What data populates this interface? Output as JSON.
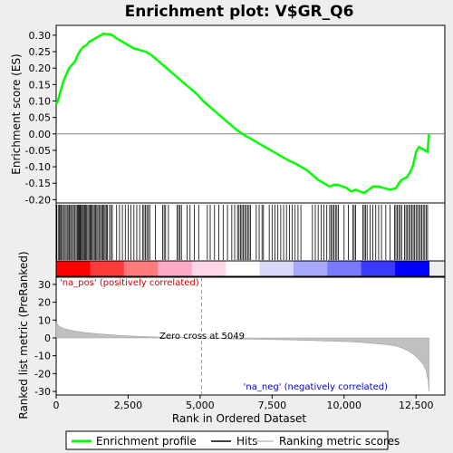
{
  "chart_data": {
    "type": "line",
    "title": "Enrichment plot: V$GR_Q6",
    "top_panel": {
      "ylabel": "Enrichment score (ES)",
      "ylim": [
        -0.21,
        0.33
      ],
      "yticks": [
        -0.2,
        -0.15,
        -0.1,
        -0.05,
        0.0,
        0.05,
        0.1,
        0.15,
        0.2,
        0.25,
        0.3
      ],
      "ytick_labels": [
        "-0.20",
        "-0.15",
        "-0.10",
        "-0.05",
        "0.00",
        "0.05",
        "0.10",
        "0.15",
        "0.20",
        "0.25",
        "0.30"
      ],
      "series_name": "Enrichment profile",
      "color": "#00ff00",
      "x": [
        0,
        60,
        150,
        250,
        350,
        450,
        550,
        650,
        750,
        850,
        950,
        1050,
        1150,
        1250,
        1350,
        1450,
        1550,
        1650,
        1750,
        1850,
        1950,
        2100,
        2300,
        2500,
        2700,
        2900,
        3100,
        3300,
        3500,
        3700,
        3900,
        4100,
        4300,
        4500,
        4700,
        4900,
        5100,
        5300,
        5500,
        5700,
        5900,
        6100,
        6300,
        6500,
        6700,
        6900,
        7100,
        7300,
        7500,
        7700,
        7900,
        8100,
        8300,
        8500,
        8700,
        8900,
        9100,
        9300,
        9500,
        9650,
        9800,
        9950,
        10100,
        10250,
        10400,
        10550,
        10700,
        10850,
        11000,
        11200,
        11400,
        11600,
        11800,
        11900,
        12000,
        12100,
        12200,
        12300,
        12400,
        12500,
        12600,
        12700,
        12800,
        12900,
        12950
      ],
      "y": [
        0.09,
        0.1,
        0.13,
        0.16,
        0.18,
        0.2,
        0.21,
        0.22,
        0.24,
        0.255,
        0.265,
        0.27,
        0.28,
        0.285,
        0.29,
        0.295,
        0.3,
        0.305,
        0.303,
        0.303,
        0.3,
        0.29,
        0.28,
        0.27,
        0.26,
        0.255,
        0.25,
        0.24,
        0.225,
        0.21,
        0.195,
        0.18,
        0.165,
        0.15,
        0.135,
        0.12,
        0.1,
        0.085,
        0.07,
        0.055,
        0.04,
        0.025,
        0.01,
        -0.002,
        -0.012,
        -0.022,
        -0.032,
        -0.042,
        -0.052,
        -0.062,
        -0.072,
        -0.082,
        -0.09,
        -0.1,
        -0.11,
        -0.125,
        -0.14,
        -0.15,
        -0.16,
        -0.155,
        -0.155,
        -0.16,
        -0.165,
        -0.175,
        -0.17,
        -0.175,
        -0.18,
        -0.17,
        -0.16,
        -0.16,
        -0.165,
        -0.17,
        -0.165,
        -0.15,
        -0.14,
        -0.135,
        -0.13,
        -0.115,
        -0.095,
        -0.055,
        -0.04,
        -0.045,
        -0.05,
        -0.055,
        0.0
      ]
    },
    "hits": [
      20,
      70,
      110,
      150,
      180,
      220,
      260,
      310,
      350,
      400,
      440,
      470,
      510,
      560,
      600,
      640,
      690,
      730,
      760,
      790,
      820,
      850,
      880,
      920,
      950,
      990,
      1020,
      1060,
      1100,
      1140,
      1180,
      1210,
      1250,
      1290,
      1330,
      1370,
      1410,
      1450,
      1500,
      1540,
      1580,
      1620,
      1660,
      1700,
      1740,
      1780,
      1850,
      1900,
      1950,
      2100,
      2200,
      2300,
      2400,
      2500,
      2600,
      2700,
      2800,
      2900,
      3000,
      3050,
      3100,
      3150,
      3200,
      3250,
      3450,
      3700,
      3750,
      3800,
      3900,
      4200,
      4250,
      4300,
      4350,
      4550,
      4650,
      4800,
      4950,
      5250,
      5350,
      5500,
      5650,
      5800,
      5950,
      6100,
      6200,
      6300,
      6350,
      6400,
      6450,
      6500,
      6550,
      6600,
      6650,
      6700,
      6750,
      6950,
      7050,
      7150,
      7200,
      7400,
      7500,
      7600,
      7700,
      7800,
      7900,
      8000,
      8100,
      8200,
      8300,
      8400,
      8500,
      8900,
      9000,
      9100,
      9200,
      9300,
      9400,
      9500,
      9550,
      9600,
      9650,
      9700,
      9750,
      9800,
      10000,
      10150,
      10300,
      10350,
      10400,
      10650,
      10700,
      10750,
      10800,
      10900,
      11000,
      11100,
      11200,
      11300,
      11450,
      11600,
      11750,
      11800,
      11850,
      11900,
      11950,
      12000,
      12100,
      12150,
      12200,
      12250,
      12300,
      12350,
      12400,
      12450,
      12500,
      12550,
      12600,
      12650,
      12700,
      12750,
      12800,
      12850,
      12900
    ],
    "metric_bar": {
      "colors": [
        "#ff0000",
        "#ff3a3a",
        "#ff7a7a",
        "#ffa8c8",
        "#ffd6e8",
        "#ffffff",
        "#d8d8f8",
        "#a8a8ff",
        "#7a7aff",
        "#3a3aff",
        "#0000ff"
      ]
    },
    "bottom_panel": {
      "ylabel": "Ranked list metric (PreRanked)",
      "xlabel": "Rank in Ordered Dataset",
      "ylim": [
        -32,
        34
      ],
      "yticks": [
        -30,
        -20,
        -10,
        0,
        10,
        20,
        30
      ],
      "ytick_labels": [
        "-30",
        "-20",
        "-10",
        "0",
        "10",
        "20",
        "30"
      ],
      "xlim": [
        0,
        13500
      ],
      "xticks": [
        0,
        2500,
        5000,
        7500,
        10000,
        12500
      ],
      "xtick_labels": [
        "0",
        "2,500",
        "5,000",
        "7,500",
        "10,000",
        "12,500"
      ],
      "zero_cross_label": "Zero cross at 5049",
      "zero_cross_x": 5049,
      "pos_label": "'na_pos' (positively correlated)",
      "neg_label": "'na_neg' (negatively correlated)",
      "metric_x": [
        0,
        100,
        300,
        600,
        1000,
        1500,
        2000,
        2500,
        3000,
        3500,
        4000,
        4500,
        5049,
        5500,
        6000,
        7000,
        8000,
        9000,
        10000,
        10500,
        11000,
        11500,
        11800,
        12000,
        12200,
        12400,
        12600,
        12750,
        12850,
        12920,
        12950
      ],
      "metric_y": [
        8.5,
        6.5,
        5,
        4,
        3,
        2.2,
        1.6,
        1.1,
        0.8,
        0.5,
        0.3,
        0.15,
        0,
        -0.3,
        -0.5,
        -0.8,
        -1.1,
        -1.5,
        -2,
        -2.4,
        -3,
        -3.8,
        -4.5,
        -5.5,
        -7,
        -9,
        -12,
        -15,
        -18,
        -24,
        -30
      ]
    },
    "legend": {
      "items": [
        {
          "label": "Enrichment profile",
          "color": "#00ff00"
        },
        {
          "label": "Hits",
          "color": "#000000"
        },
        {
          "label": "Ranking metric scores",
          "color": "#c0c0c0"
        }
      ]
    }
  }
}
